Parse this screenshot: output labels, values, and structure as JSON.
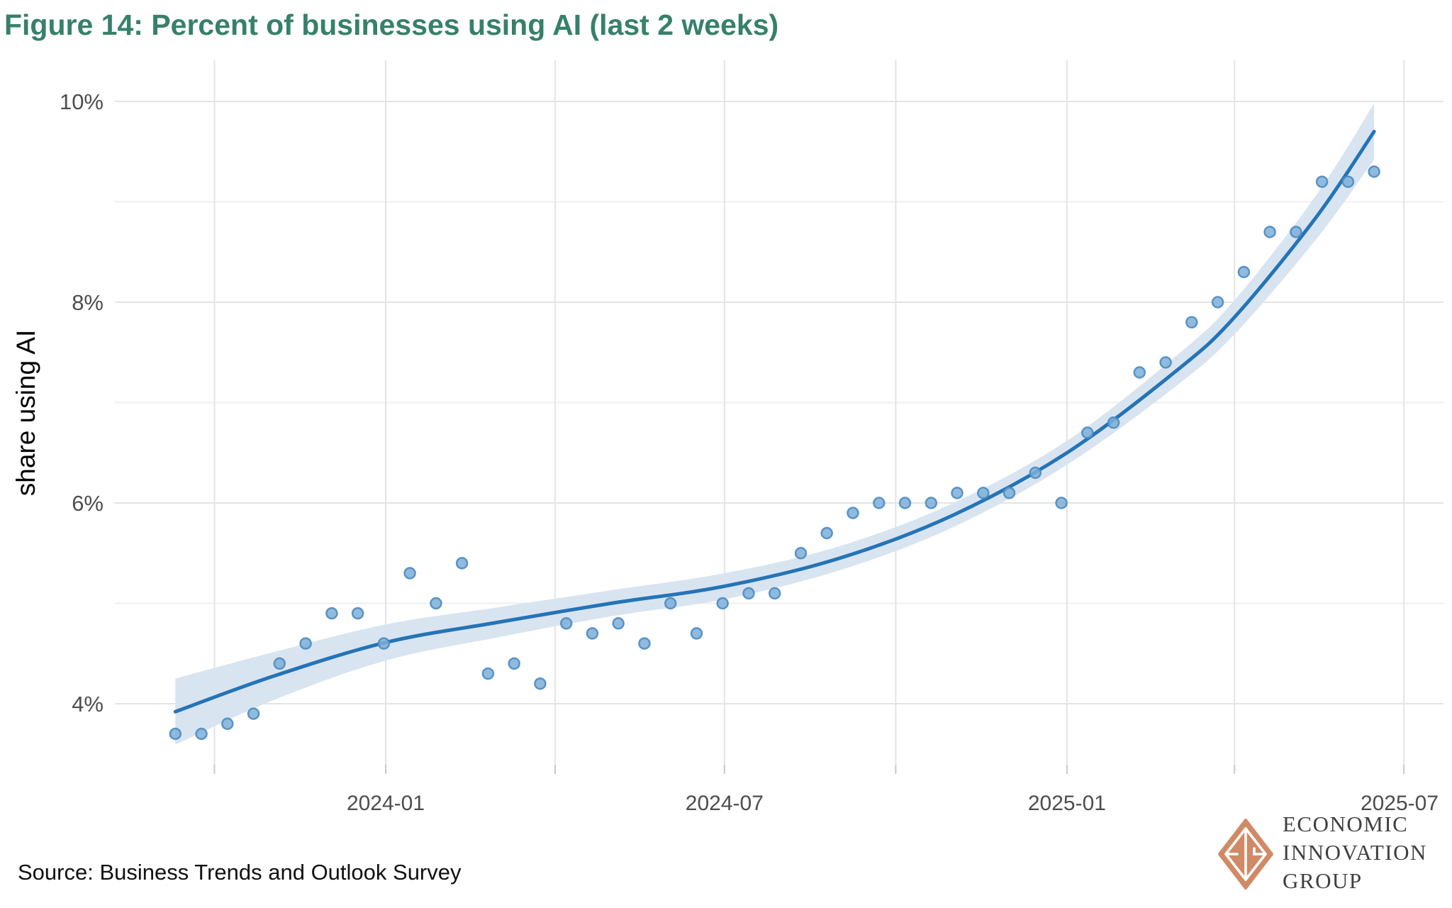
{
  "figure": {
    "title": "Figure 14: Percent of businesses using AI (last 2 weeks)",
    "title_color": "#37806b"
  },
  "source": {
    "text": "Source: Business Trends and Outlook Survey"
  },
  "logo": {
    "lines": [
      "ECONOMIC",
      "INNOVATION",
      "GROUP"
    ],
    "mark_color": "#d08a66",
    "mark_name": "eig-diamond-logo"
  },
  "chart_data": {
    "type": "scatter",
    "title": "Figure 14: Percent of businesses using AI (last 2 weeks)",
    "xlabel": "",
    "ylabel": "share using AI",
    "grid": "on",
    "legend": "none",
    "ylim": [
      3.4,
      10.4
    ],
    "xlim": [
      "2023-08-08",
      "2025-07-22"
    ],
    "y_axis": {
      "major_ticks": [
        4,
        6,
        8,
        10
      ],
      "major_labels": [
        "4%",
        "6%",
        "8%",
        "10%"
      ],
      "minor_ticks": [
        5,
        7,
        9
      ]
    },
    "x_axis": {
      "tick_dates": [
        "2023-10-01",
        "2024-01-01",
        "2024-04-01",
        "2024-07-01",
        "2024-10-01",
        "2025-01-01",
        "2025-04-01",
        "2025-07-01"
      ],
      "labeled_ticks": [
        {
          "date": "2024-01-01",
          "label": "2024-01"
        },
        {
          "date": "2024-07-01",
          "label": "2024-07"
        },
        {
          "date": "2025-01-01",
          "label": "2025-01"
        },
        {
          "date": "2025-07-01",
          "label": "2025-07"
        }
      ]
    },
    "points": [
      {
        "date": "2023-09-10",
        "value": 3.7
      },
      {
        "date": "2023-09-24",
        "value": 3.7
      },
      {
        "date": "2023-10-08",
        "value": 3.8
      },
      {
        "date": "2023-10-22",
        "value": 3.9
      },
      {
        "date": "2023-11-05",
        "value": 4.4
      },
      {
        "date": "2023-11-19",
        "value": 4.6
      },
      {
        "date": "2023-12-03",
        "value": 4.9
      },
      {
        "date": "2023-12-17",
        "value": 4.9
      },
      {
        "date": "2023-12-31",
        "value": 4.6
      },
      {
        "date": "2024-01-14",
        "value": 5.3
      },
      {
        "date": "2024-01-28",
        "value": 5.0
      },
      {
        "date": "2024-02-11",
        "value": 5.4
      },
      {
        "date": "2024-02-25",
        "value": 4.3
      },
      {
        "date": "2024-03-10",
        "value": 4.4
      },
      {
        "date": "2024-03-24",
        "value": 4.2
      },
      {
        "date": "2024-04-07",
        "value": 4.8
      },
      {
        "date": "2024-04-21",
        "value": 4.7
      },
      {
        "date": "2024-05-05",
        "value": 4.8
      },
      {
        "date": "2024-05-19",
        "value": 4.6
      },
      {
        "date": "2024-06-02",
        "value": 5.0
      },
      {
        "date": "2024-06-16",
        "value": 4.7
      },
      {
        "date": "2024-06-30",
        "value": 5.0
      },
      {
        "date": "2024-07-14",
        "value": 5.1
      },
      {
        "date": "2024-07-28",
        "value": 5.1
      },
      {
        "date": "2024-08-11",
        "value": 5.5
      },
      {
        "date": "2024-08-25",
        "value": 5.7
      },
      {
        "date": "2024-09-08",
        "value": 5.9
      },
      {
        "date": "2024-09-22",
        "value": 6.0
      },
      {
        "date": "2024-10-06",
        "value": 6.0
      },
      {
        "date": "2024-10-20",
        "value": 6.0
      },
      {
        "date": "2024-11-03",
        "value": 6.1
      },
      {
        "date": "2024-11-17",
        "value": 6.1
      },
      {
        "date": "2024-12-01",
        "value": 6.1
      },
      {
        "date": "2024-12-15",
        "value": 6.3
      },
      {
        "date": "2024-12-29",
        "value": 6.0
      },
      {
        "date": "2025-01-12",
        "value": 6.7
      },
      {
        "date": "2025-01-26",
        "value": 6.8
      },
      {
        "date": "2025-02-09",
        "value": 7.3
      },
      {
        "date": "2025-02-23",
        "value": 7.4
      },
      {
        "date": "2025-03-09",
        "value": 7.8
      },
      {
        "date": "2025-03-23",
        "value": 8.0
      },
      {
        "date": "2025-04-06",
        "value": 8.3
      },
      {
        "date": "2025-04-20",
        "value": 8.7
      },
      {
        "date": "2025-05-04",
        "value": 8.7
      },
      {
        "date": "2025-05-18",
        "value": 9.2
      },
      {
        "date": "2025-06-01",
        "value": 9.2
      },
      {
        "date": "2025-06-15",
        "value": 9.3
      }
    ],
    "trend": [
      {
        "date": "2023-09-10",
        "value": 3.92,
        "half_width": 0.33
      },
      {
        "date": "2023-11-01",
        "value": 4.27,
        "half_width": 0.24
      },
      {
        "date": "2024-01-01",
        "value": 4.61,
        "half_width": 0.18
      },
      {
        "date": "2024-03-01",
        "value": 4.81,
        "half_width": 0.15
      },
      {
        "date": "2024-05-01",
        "value": 5.0,
        "half_width": 0.13
      },
      {
        "date": "2024-07-01",
        "value": 5.17,
        "half_width": 0.13
      },
      {
        "date": "2024-09-01",
        "value": 5.45,
        "half_width": 0.12
      },
      {
        "date": "2024-11-01",
        "value": 5.88,
        "half_width": 0.12
      },
      {
        "date": "2025-01-01",
        "value": 6.5,
        "half_width": 0.12
      },
      {
        "date": "2025-03-01",
        "value": 7.32,
        "half_width": 0.15
      },
      {
        "date": "2025-04-01",
        "value": 7.85,
        "half_width": 0.17
      },
      {
        "date": "2025-05-15",
        "value": 8.85,
        "half_width": 0.22
      },
      {
        "date": "2025-06-15",
        "value": 9.7,
        "half_width": 0.28
      }
    ],
    "colors": {
      "point_fill": "#7cafd8",
      "point_stroke": "#4c8cc2",
      "trend_line": "#2474b6",
      "confidence_band": "#d9e4f1",
      "grid_major": "#e4e4e4",
      "grid_minor": "#efefef",
      "axis_tick": "#c8c8c8",
      "axis_text": "#4d4d4d"
    }
  }
}
